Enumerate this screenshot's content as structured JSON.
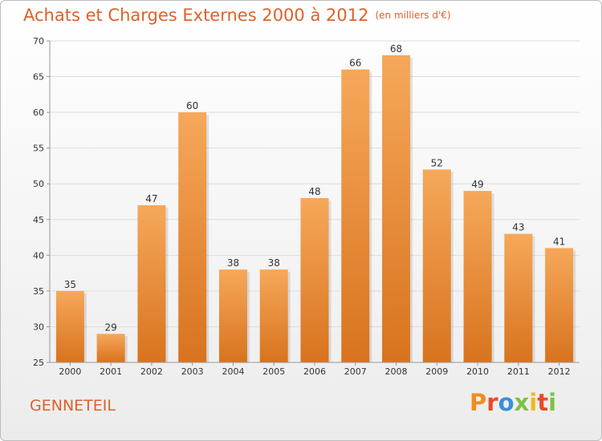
{
  "header": {
    "title": "Achats et Charges Externes 2000 à 2012",
    "subtitle": "(en milliers d'€)"
  },
  "footer": {
    "commune": "GENNETEIL",
    "brand": "Proxiti",
    "brand_colors": [
      "#f28c1e",
      "#e84a2a",
      "#3a8fd8",
      "#7cc242",
      "#f2b81e",
      "#e84a2a",
      "#7cc242"
    ]
  },
  "colors": {
    "bar_top": "#f6a85a",
    "bar_bottom": "#d8731e",
    "axis": "#999999",
    "grid": "#dddddd",
    "title": "#e0602a"
  },
  "chart_data": {
    "type": "bar",
    "categories": [
      "2000",
      "2001",
      "2002",
      "2003",
      "2004",
      "2005",
      "2006",
      "2007",
      "2008",
      "2009",
      "2010",
      "2011",
      "2012"
    ],
    "values": [
      35,
      29,
      47,
      60,
      38,
      38,
      48,
      66,
      68,
      52,
      49,
      43,
      41
    ],
    "ylim": [
      25,
      70
    ],
    "yticks": [
      25,
      30,
      35,
      40,
      45,
      50,
      55,
      60,
      65,
      70
    ],
    "grid": true
  }
}
